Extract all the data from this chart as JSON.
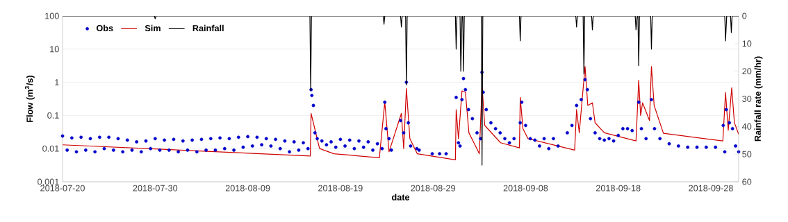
{
  "chart_data": {
    "type": "line",
    "xlabel": "date",
    "ylabel": "Flow (m$^{3}$/s)",
    "y2label": "Rainfall rate (mm/hr)",
    "xlim": [
      "2018-07-20",
      "2018-10-01"
    ],
    "xticks": [
      "2018-07-20",
      "2018-07-30",
      "2018-08-09",
      "2018-08-19",
      "2018-08-29",
      "2018-09-08",
      "2018-09-18",
      "2018-09-28"
    ],
    "ylim": [
      0.001,
      100
    ],
    "yticks": [
      0.001,
      0.01,
      0.1,
      1,
      10,
      100
    ],
    "log": "y",
    "y2lim": [
      60,
      0
    ],
    "y2ticks": [
      0,
      10,
      20,
      30,
      40,
      50,
      60
    ],
    "grid": "y",
    "legend": "top left",
    "series": [
      {
        "name": "Obs",
        "type": "scatter",
        "marker": "circle",
        "color": "#0000cc",
        "x": [
          "2018-07-20T00:00",
          "2018-07-20T12:00",
          "2018-07-21T00:00",
          "2018-07-21T12:00",
          "2018-07-22T00:00",
          "2018-07-22T12:00",
          "2018-07-23T00:00",
          "2018-07-23T12:00",
          "2018-07-24T00:00",
          "2018-07-24T12:00",
          "2018-07-25T00:00",
          "2018-07-25T12:00",
          "2018-07-26T00:00",
          "2018-07-26T12:00",
          "2018-07-27T00:00",
          "2018-07-27T12:00",
          "2018-07-28T00:00",
          "2018-07-28T12:00",
          "2018-07-29T00:00",
          "2018-07-29T12:00",
          "2018-07-30T00:00",
          "2018-07-30T12:00",
          "2018-07-31T00:00",
          "2018-07-31T12:00",
          "2018-08-01T00:00",
          "2018-08-01T12:00",
          "2018-08-02T00:00",
          "2018-08-02T12:00",
          "2018-08-03T00:00",
          "2018-08-03T12:00",
          "2018-08-04T00:00",
          "2018-08-04T12:00",
          "2018-08-05T00:00",
          "2018-08-05T12:00",
          "2018-08-06T00:00",
          "2018-08-06T12:00",
          "2018-08-07T00:00",
          "2018-08-07T12:00",
          "2018-08-08T00:00",
          "2018-08-08T12:00",
          "2018-08-09T00:00",
          "2018-08-09T12:00",
          "2018-08-10T00:00",
          "2018-08-10T12:00",
          "2018-08-11T00:00",
          "2018-08-11T12:00",
          "2018-08-12T00:00",
          "2018-08-12T12:00",
          "2018-08-13T00:00",
          "2018-08-13T12:00",
          "2018-08-14T00:00",
          "2018-08-14T12:00",
          "2018-08-15T00:00",
          "2018-08-15T12:00",
          "2018-08-15T20:00",
          "2018-08-15T22:00",
          "2018-08-16T02:00",
          "2018-08-16T06:00",
          "2018-08-16T12:00",
          "2018-08-17T00:00",
          "2018-08-17T12:00",
          "2018-08-18T00:00",
          "2018-08-18T12:00",
          "2018-08-19T00:00",
          "2018-08-19T12:00",
          "2018-08-20T00:00",
          "2018-08-20T12:00",
          "2018-08-21T00:00",
          "2018-08-21T12:00",
          "2018-08-22T00:00",
          "2018-08-22T12:00",
          "2018-08-23T00:00",
          "2018-08-23T12:00",
          "2018-08-23T19:00",
          "2018-08-23T22:00",
          "2018-08-24T06:00",
          "2018-08-24T12:00",
          "2018-08-25T12:00",
          "2018-08-25T20:00",
          "2018-08-26T03:00",
          "2018-08-26T08:00",
          "2018-08-26T14:00",
          "2018-08-27T06:00",
          "2018-08-27T12:00",
          "2018-08-28T22:00",
          "2018-08-29T17:00",
          "2018-08-30T10:00",
          "2018-08-31T12:00",
          "2018-08-31T18:00",
          "2018-08-31T22:00",
          "2018-09-01T03:00",
          "2018-09-01T07:00",
          "2018-09-01T12:00",
          "2018-09-01T20:00",
          "2018-09-02T06:00",
          "2018-09-02T18:00",
          "2018-09-03T03:00",
          "2018-09-03T07:00",
          "2018-09-03T10:00",
          "2018-09-03T18:00",
          "2018-09-04T06:00",
          "2018-09-04T18:00",
          "2018-09-05T06:00",
          "2018-09-05T18:00",
          "2018-09-06T06:00",
          "2018-09-06T18:00",
          "2018-09-07T10:00",
          "2018-09-07T14:00",
          "2018-09-08T00:00",
          "2018-09-08T12:00",
          "2018-09-09T00:00",
          "2018-09-09T12:00",
          "2018-09-10T00:00",
          "2018-09-10T12:00",
          "2018-09-11T00:00",
          "2018-09-11T12:00",
          "2018-09-12T12:00",
          "2018-09-13T00:00",
          "2018-09-13T12:00",
          "2018-09-14T00:00",
          "2018-09-14T10:00",
          "2018-09-14T16:00",
          "2018-09-15T00:00",
          "2018-09-15T12:00",
          "2018-09-16T00:00",
          "2018-09-16T12:00",
          "2018-09-17T00:00",
          "2018-09-17T12:00",
          "2018-09-18T00:00",
          "2018-09-18T12:00",
          "2018-09-19T00:00",
          "2018-09-19T12:00",
          "2018-09-20T05:00",
          "2018-09-20T12:00",
          "2018-09-21T00:00",
          "2018-09-21T14:00",
          "2018-09-21T22:00",
          "2018-09-22T12:00",
          "2018-09-23T12:00",
          "2018-09-24T12:00",
          "2018-09-25T12:00",
          "2018-09-26T12:00",
          "2018-09-27T12:00",
          "2018-09-28T12:00",
          "2018-09-29T08:00",
          "2018-09-29T12:00",
          "2018-09-29T16:00",
          "2018-09-30T00:00",
          "2018-09-30T08:00",
          "2018-09-30T16:00",
          "2018-10-01T00:00"
        ],
        "values": [
          0.024,
          0.009,
          0.021,
          0.008,
          0.022,
          0.009,
          0.02,
          0.008,
          0.022,
          0.01,
          0.022,
          0.009,
          0.02,
          0.008,
          0.018,
          0.009,
          0.016,
          0.008,
          0.017,
          0.01,
          0.02,
          0.009,
          0.018,
          0.009,
          0.019,
          0.008,
          0.017,
          0.009,
          0.018,
          0.008,
          0.019,
          0.009,
          0.02,
          0.009,
          0.021,
          0.01,
          0.02,
          0.009,
          0.022,
          0.011,
          0.023,
          0.012,
          0.022,
          0.013,
          0.02,
          0.012,
          0.019,
          0.01,
          0.017,
          0.008,
          0.016,
          0.009,
          0.015,
          0.01,
          0.6,
          0.4,
          0.2,
          0.03,
          0.02,
          0.017,
          0.013,
          0.016,
          0.011,
          0.019,
          0.012,
          0.018,
          0.01,
          0.017,
          0.011,
          0.016,
          0.009,
          0.014,
          0.01,
          0.25,
          0.04,
          0.02,
          0.009,
          0.07,
          0.03,
          1,
          0.06,
          0.012,
          0.01,
          0.009,
          0.007,
          0.007,
          0.007,
          0.35,
          0.015,
          0.012,
          0.3,
          1.3,
          0.6,
          0.15,
          0.08,
          0.03,
          0.02,
          2,
          0.5,
          0.15,
          0.06,
          0.04,
          0.03,
          0.02,
          0.015,
          0.02,
          0.06,
          0.25,
          0.05,
          0.02,
          0.018,
          0.012,
          0.02,
          0.01,
          0.02,
          0.012,
          0.03,
          0.05,
          0.2,
          0.3,
          1.2,
          0.6,
          0.08,
          0.03,
          0.02,
          0.018,
          0.02,
          0.017,
          0.025,
          0.04,
          0.04,
          0.035,
          0.25,
          0.04,
          0.02,
          0.3,
          0.04,
          0.02,
          0.014,
          0.012,
          0.011,
          0.011,
          0.011,
          0.011,
          0.05,
          0.008,
          0.15,
          0.06,
          0.04,
          0.012,
          0.008
        ]
      },
      {
        "name": "Sim",
        "color": "#d00000",
        "x": [
          "2018-07-20T00:00",
          "2018-08-15T18:00",
          "2018-08-15T20:00",
          "2018-08-16T18:00",
          "2018-08-18T07:00",
          "2018-08-23T05:00",
          "2018-08-23T19:00",
          "2018-08-24T06:00",
          "2018-08-25T14:00",
          "2018-08-25T20:00",
          "2018-08-26T03:00",
          "2018-08-26T12:00",
          "2018-08-27T07:00",
          "2018-08-31T10:00",
          "2018-08-31T12:00",
          "2018-08-31T18:00",
          "2018-09-01T03:00",
          "2018-09-01T12:00",
          "2018-09-01T21:00",
          "2018-09-03T00:00",
          "2018-09-03T07:00",
          "2018-09-03T14:00",
          "2018-09-05T07:00",
          "2018-09-07T08:00",
          "2018-09-07T10:00",
          "2018-09-07T17:00",
          "2018-09-08T06:00",
          "2018-09-13T07:00",
          "2018-09-13T12:00",
          "2018-09-13T19:00",
          "2018-09-14T10:00",
          "2018-09-14T17:00",
          "2018-09-15T05:00",
          "2018-09-15T12:00",
          "2018-09-16T12:00",
          "2018-09-19T22:00",
          "2018-09-20T05:00",
          "2018-09-20T10:00",
          "2018-09-20T15:00",
          "2018-09-21T09:00",
          "2018-09-21T14:00",
          "2018-09-21T21:00",
          "2018-09-22T21:00",
          "2018-09-29T07:00",
          "2018-09-29T14:00",
          "2018-09-29T21:00",
          "2018-09-30T06:00",
          "2018-09-30T13:00",
          "2018-10-01T00:00"
        ],
        "values": [
          0.013,
          0.006,
          0.115,
          0.01,
          0.007,
          0.0053,
          0.25,
          0.008,
          0.115,
          0.01,
          0.65,
          0.02,
          0.007,
          0.0046,
          0.15,
          0.02,
          0.55,
          0.5,
          0.03,
          0.007,
          0.8,
          0.05,
          0.015,
          0.0105,
          0.35,
          0.04,
          0.02,
          0.009,
          0.15,
          0.03,
          3,
          0.2,
          0.24,
          0.06,
          0.03,
          0.017,
          1.15,
          0.1,
          0.24,
          0.07,
          3,
          0.2,
          0.029,
          0.017,
          0.49,
          0.036,
          0.68,
          0.06,
          0.027
        ]
      },
      {
        "name": "Rainfall",
        "axis": "y2",
        "color": "#000000",
        "x": [
          "2018-07-20T00:00",
          "2018-07-29T22:00",
          "2018-07-30T00:00",
          "2018-07-30T02:00",
          "2018-08-15T17:00",
          "2018-08-15T19:00",
          "2018-08-15T21:00",
          "2018-08-23T15:00",
          "2018-08-23T17:00",
          "2018-08-23T19:00",
          "2018-08-25T12:00",
          "2018-08-25T14:00",
          "2018-08-25T16:00",
          "2018-08-26T01:00",
          "2018-08-26T03:00",
          "2018-08-26T05:00",
          "2018-08-31T10:00",
          "2018-08-31T12:00",
          "2018-08-31T14:00",
          "2018-08-31T22:00",
          "2018-09-01T00:00",
          "2018-09-01T03:00",
          "2018-09-01T05:00",
          "2018-09-01T07:00",
          "2018-09-01T09:00",
          "2018-09-03T05:00",
          "2018-09-03T07:00",
          "2018-09-03T09:00",
          "2018-09-07T08:00",
          "2018-09-07T10:00",
          "2018-09-07T12:00",
          "2018-09-13T10:00",
          "2018-09-13T12:00",
          "2018-09-13T14:00",
          "2018-09-14T05:00",
          "2018-09-14T07:00",
          "2018-09-14T09:00",
          "2018-09-15T03:00",
          "2018-09-15T05:00",
          "2018-09-15T07:00",
          "2018-09-19T20:00",
          "2018-09-19T22:00",
          "2018-09-20T01:00",
          "2018-09-20T03:00",
          "2018-09-20T05:00",
          "2018-09-20T07:00",
          "2018-09-21T12:00",
          "2018-09-21T14:00",
          "2018-09-21T16:00",
          "2018-09-29T12:00",
          "2018-09-29T14:00",
          "2018-09-29T17:00",
          "2018-09-30T03:00",
          "2018-09-30T05:00",
          "2018-09-30T07:00",
          "2018-10-01T00:00"
        ],
        "values": [
          0,
          0,
          1,
          0,
          0,
          27,
          0,
          0,
          3,
          0,
          0,
          4,
          0,
          0,
          25,
          0,
          0,
          12,
          0,
          0,
          20,
          0,
          0,
          20,
          0,
          0,
          54,
          0,
          0,
          9,
          0,
          0,
          4,
          0,
          0,
          21,
          0,
          0,
          5,
          0,
          0,
          5,
          0,
          0,
          18,
          0,
          0,
          12,
          0,
          0,
          9,
          0,
          0,
          6,
          0,
          0
        ]
      }
    ]
  }
}
